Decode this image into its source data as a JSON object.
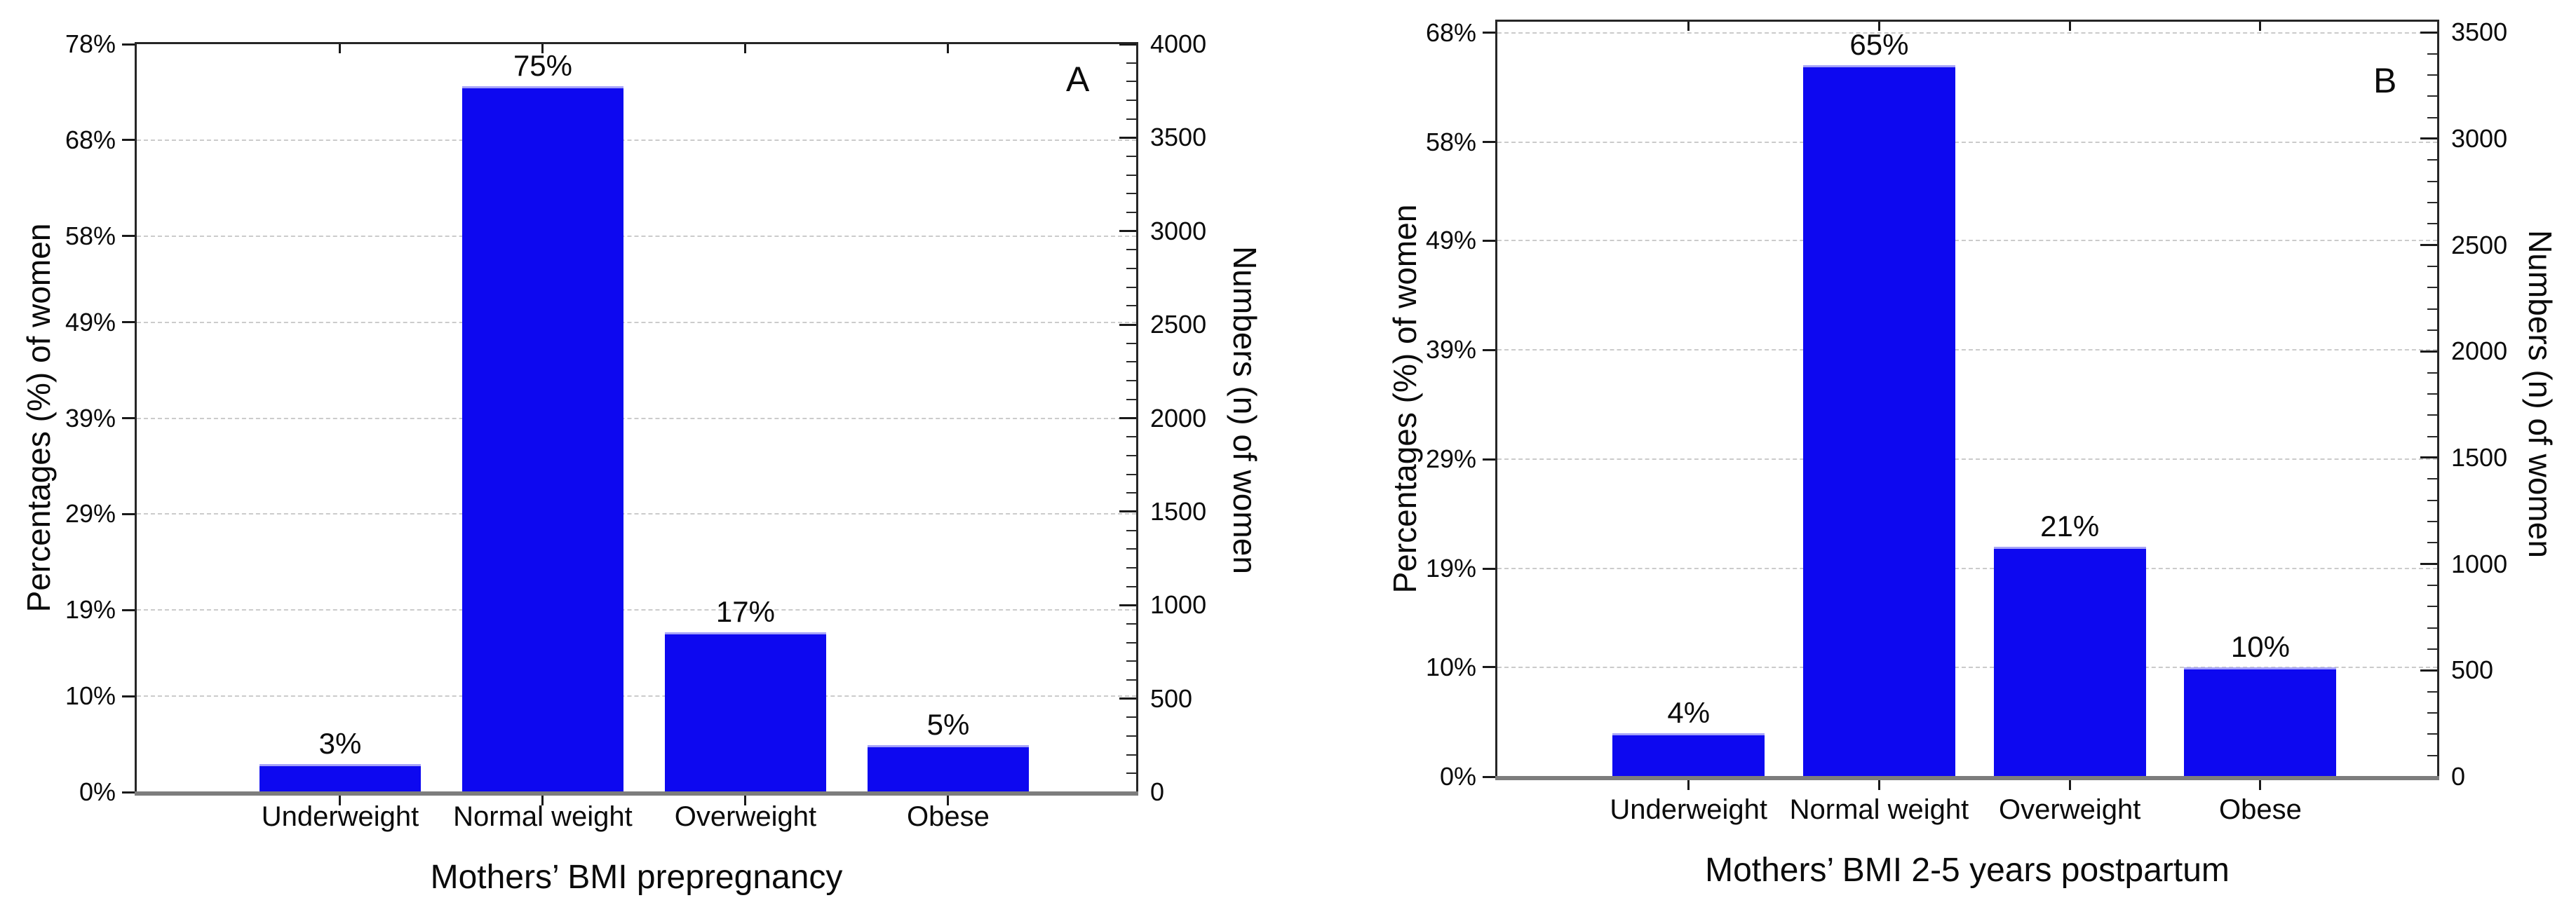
{
  "figure": {
    "background": "#ffffff",
    "bar_color": "#0d08f0",
    "bar_top_edge_color": "#a5a2f8",
    "grid_color": "#cbcbcb",
    "baseline_color": "#7d7d7d",
    "frame_color": "#262626",
    "text_color": "#0b0b0b"
  },
  "chart_data": [
    {
      "type": "bar",
      "panel_label": "A",
      "categories": [
        "Underweight",
        "Normal weight",
        "Overweight",
        "Obese"
      ],
      "values": [
        3,
        75,
        17,
        5
      ],
      "bar_labels": [
        "3%",
        "75%",
        "17%",
        "5%"
      ],
      "xlabel": "Mothers’ BMI prepregnancy",
      "ylabel_left": "Percentages (%) of women",
      "ylabel_right": "Numbers (n) of women",
      "left_axis": {
        "tick_labels": [
          "78%",
          "68%",
          "58%",
          "49%",
          "39%",
          "29%",
          "19%",
          "10%",
          "0%"
        ],
        "tick_values": [
          78,
          68,
          58,
          49,
          39,
          29,
          19,
          10,
          0
        ],
        "lim": [
          0,
          78
        ]
      },
      "right_axis": {
        "tick_labels": [
          "4000",
          "3500",
          "3000",
          "2500",
          "2000",
          "1500",
          "1000",
          "500",
          "0"
        ],
        "tick_values": [
          4000,
          3500,
          3000,
          2500,
          2000,
          1500,
          1000,
          500,
          0
        ],
        "lim": [
          0,
          4000
        ],
        "minor_step": 100
      },
      "grid": true,
      "legend": "none"
    },
    {
      "type": "bar",
      "panel_label": "B",
      "categories": [
        "Underweight",
        "Normal weight",
        "Overweight",
        "Obese"
      ],
      "values": [
        4,
        65,
        21,
        10
      ],
      "bar_labels": [
        "4%",
        "65%",
        "21%",
        "10%"
      ],
      "xlabel": "Mothers’ BMI 2-5 years postpartum",
      "ylabel_left": "Percentages (%) of women",
      "ylabel_right": "Numbers (n) of women",
      "left_axis": {
        "tick_labels": [
          "68%",
          "58%",
          "49%",
          "39%",
          "29%",
          "19%",
          "10%",
          "0%"
        ],
        "tick_values": [
          68,
          58,
          49,
          39,
          29,
          19,
          10,
          0
        ],
        "lim": [
          0,
          69
        ]
      },
      "right_axis": {
        "tick_labels": [
          "3500",
          "3000",
          "2500",
          "2000",
          "1500",
          "1000",
          "500",
          "0"
        ],
        "tick_values": [
          3500,
          3000,
          2500,
          2000,
          1500,
          1000,
          500,
          0
        ],
        "lim": [
          0,
          3550
        ],
        "minor_step": 100
      },
      "grid": true,
      "legend": "none"
    }
  ]
}
